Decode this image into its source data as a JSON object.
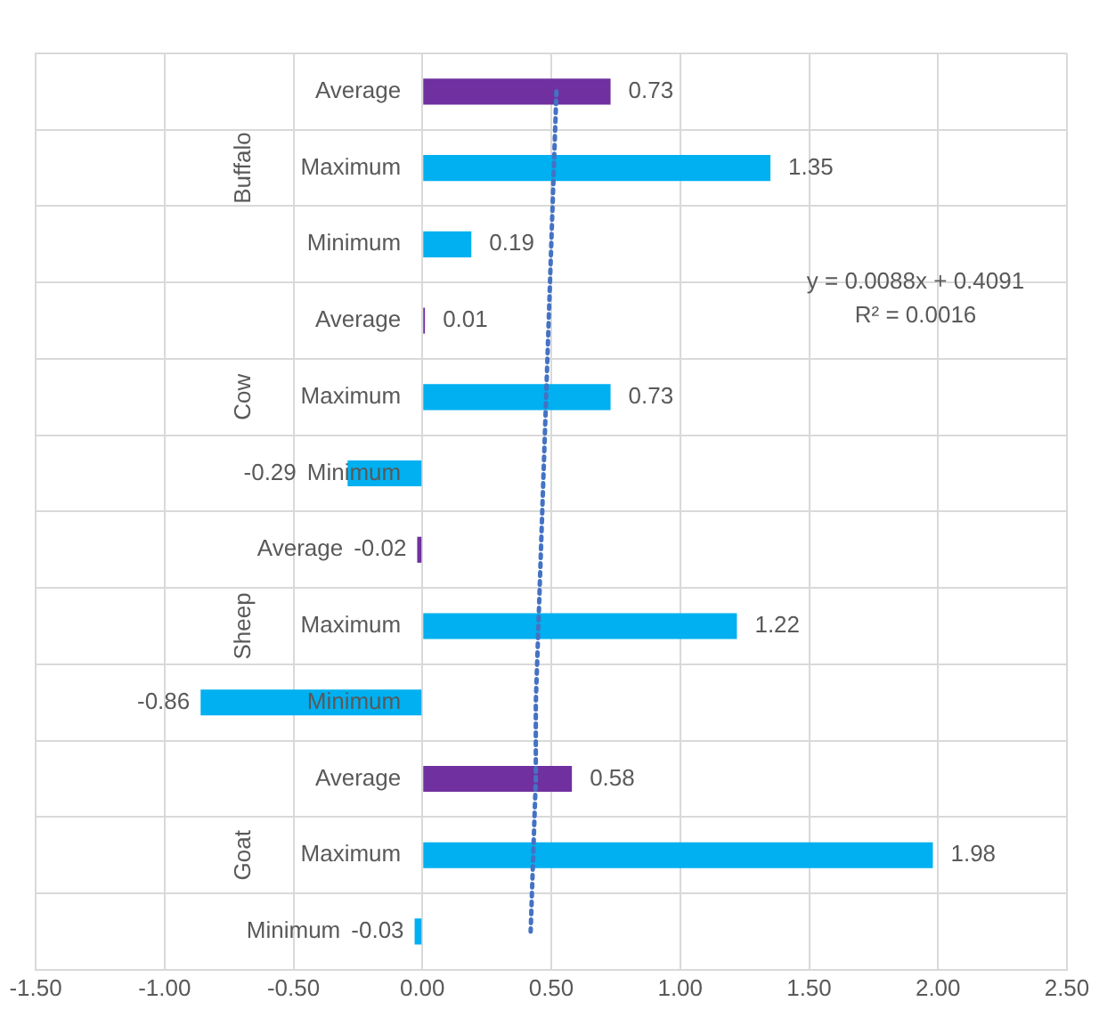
{
  "chart_data": {
    "type": "bar",
    "orientation": "horizontal",
    "categories": [
      "Average",
      "Maximum",
      "Minimum",
      "Average",
      "Maximum",
      "Minimum",
      "Average",
      "Maximum",
      "Minimum",
      "Average",
      "Maximum",
      "Minimum"
    ],
    "series": [
      {
        "colors": [
          "#7030a0",
          "#00b0f0",
          "#00b0f0",
          "#7030a0",
          "#00b0f0",
          "#00b0f0",
          "#7030a0",
          "#00b0f0",
          "#00b0f0",
          "#7030a0",
          "#00b0f0",
          "#00b0f0"
        ],
        "values": [
          0.73,
          1.35,
          0.19,
          0.01,
          0.73,
          -0.29,
          -0.02,
          1.22,
          -0.86,
          0.58,
          1.98,
          -0.03
        ],
        "value_labels": [
          "0.73",
          "1.35",
          "0.19",
          "0.01",
          "0.73",
          "-0.29",
          "-0.02",
          "1.22",
          "-0.86",
          "0.58",
          "1.98",
          "-0.03"
        ]
      },
      {
        "type": "line",
        "color": "#4472c4",
        "line_style": "dotted",
        "values": [
          0.52,
          0.51,
          0.5,
          0.49,
          0.48,
          0.47,
          0.46,
          0.45,
          0.44,
          0.44,
          0.43,
          0.42
        ]
      }
    ],
    "xlim": [
      -1.5,
      2.5
    ],
    "xticks": [
      {
        "value": -1.5,
        "label": "-1.50"
      },
      {
        "value": -1,
        "label": "-1.00"
      },
      {
        "value": -0.5,
        "label": "-0.50"
      },
      {
        "value": 0,
        "label": "0.00"
      },
      {
        "value": 0.5,
        "label": "0.50"
      },
      {
        "value": 1,
        "label": "1.00"
      },
      {
        "value": 1.5,
        "label": "1.50"
      },
      {
        "value": 2,
        "label": "2.00"
      },
      {
        "value": 2.5,
        "label": "2.50"
      }
    ],
    "annotations": [
      "Buffalo",
      "Cow",
      "Sheep",
      "Goat",
      "y = 0.0088x + 0.4091",
      "R² = 0.0016"
    ],
    "grid": true,
    "legend": false
  }
}
